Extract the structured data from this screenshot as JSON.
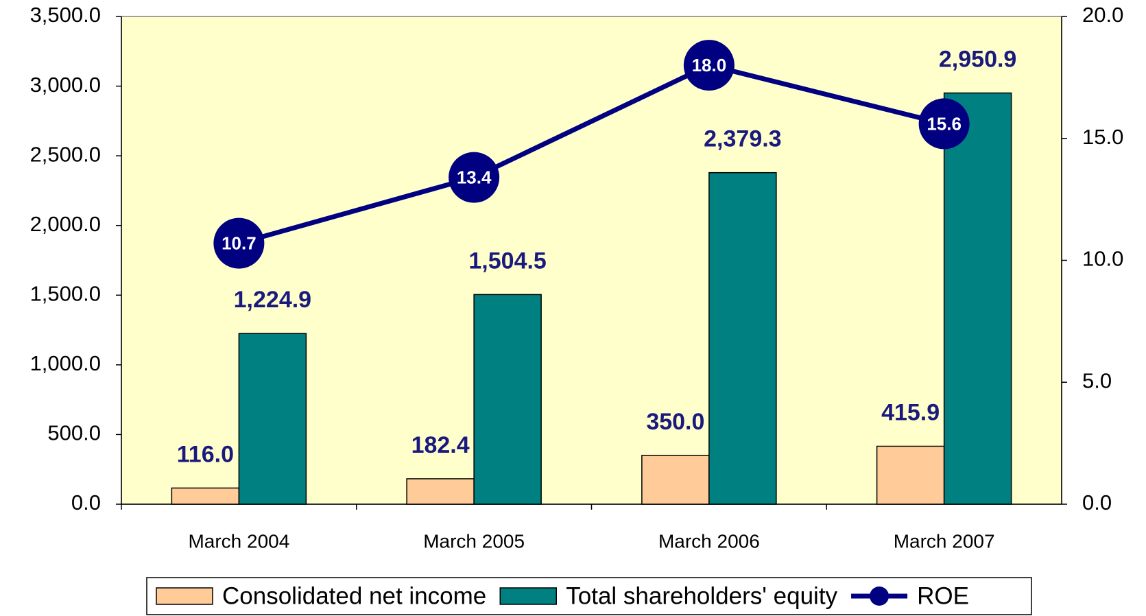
{
  "chart_data": {
    "type": "bar",
    "categories": [
      "March 2004",
      "March 2005",
      "March 2006",
      "March 2007"
    ],
    "series": [
      {
        "name": "Consolidated net income",
        "color": "#ffcc99",
        "values": [
          116.0,
          182.4,
          350.0,
          415.9
        ],
        "value_labels": [
          "116.0",
          "182.4",
          "350.0",
          "415.9"
        ]
      },
      {
        "name": "Total shareholders' equity",
        "color": "#008080",
        "values": [
          1224.9,
          1504.5,
          2379.3,
          2950.9
        ],
        "value_labels": [
          "1,224.9",
          "1,504.5",
          "2,379.3",
          "2,950.9"
        ]
      },
      {
        "name": "ROE",
        "type": "line",
        "axis": "y2",
        "color": "#000080",
        "values": [
          10.7,
          13.4,
          18.0,
          15.6
        ],
        "value_labels": [
          "10.7",
          "13.4",
          "18.0",
          "15.6"
        ]
      }
    ],
    "ylim": [
      0,
      3500
    ],
    "yticks": [
      {
        "value": 0,
        "label": "0.0"
      },
      {
        "value": 500,
        "label": "500.0"
      },
      {
        "value": 1000,
        "label": "1,000.0"
      },
      {
        "value": 1500,
        "label": "1,500.0"
      },
      {
        "value": 2000,
        "label": "2,000.0"
      },
      {
        "value": 2500,
        "label": "2,500.0"
      },
      {
        "value": 3000,
        "label": "3,000.0"
      },
      {
        "value": 3500,
        "label": "3,500.0"
      }
    ],
    "y2lim": [
      0,
      20
    ],
    "y2ticks": [
      {
        "value": 0,
        "label": "0.0"
      },
      {
        "value": 5,
        "label": "5.0"
      },
      {
        "value": 10,
        "label": "10.0"
      },
      {
        "value": 15,
        "label": "15.0"
      },
      {
        "value": 20,
        "label": "20.0"
      }
    ],
    "plot_background": "#ffffcc",
    "legend": "bottom"
  }
}
